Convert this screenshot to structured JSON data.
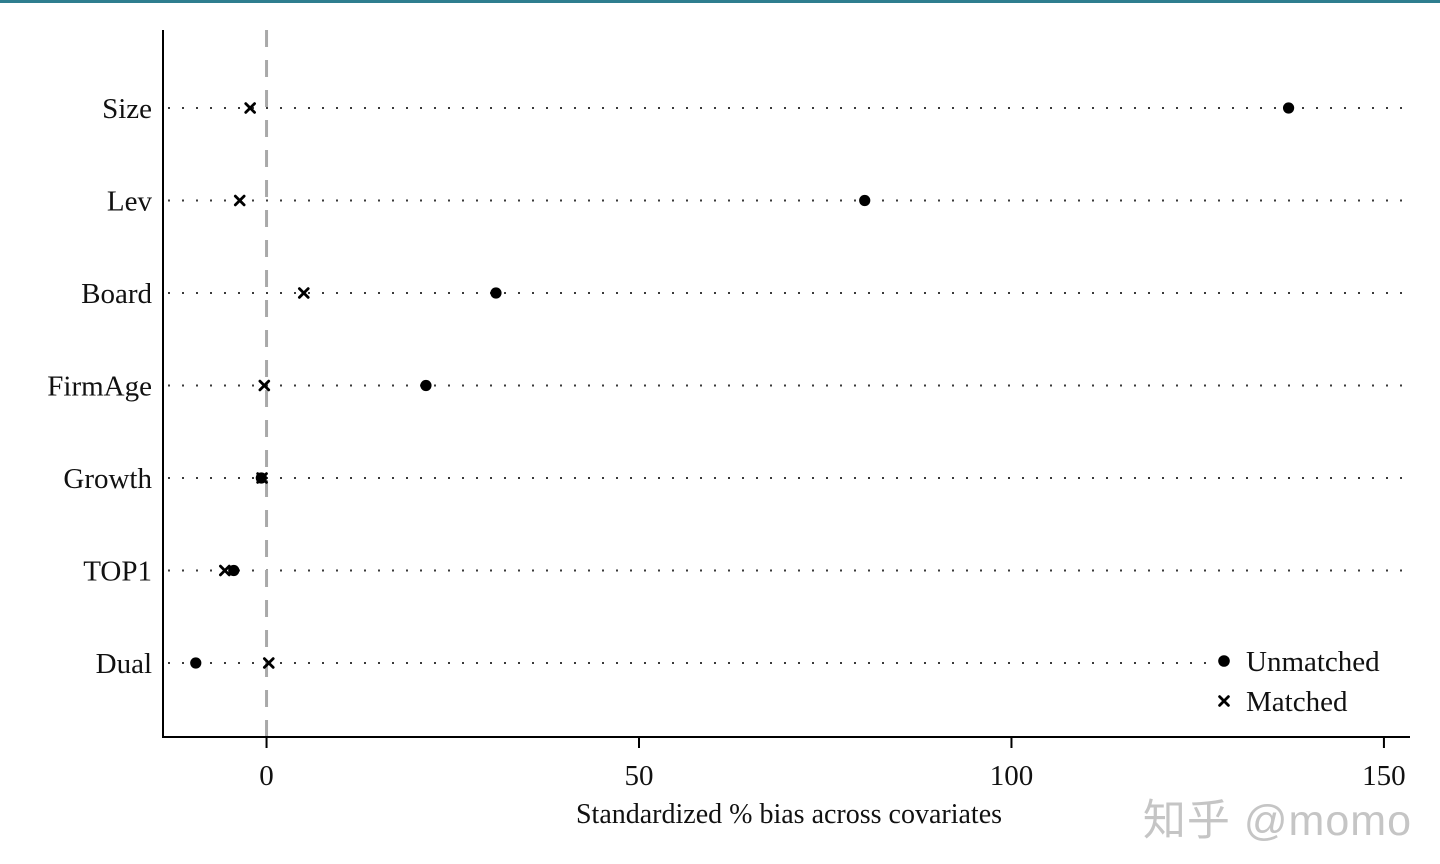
{
  "page": {
    "top_border_color": "#2f7e8f",
    "background": "#ffffff",
    "watermark": {
      "text": "知乎 @momo",
      "color": "#c5c5c5"
    }
  },
  "chart_data": {
    "type": "scatter",
    "subtype": "horizontal dot plot (covariate balance / Stata pstest style)",
    "title": "",
    "xlabel": "Standardized % bias across covariates",
    "ylabel": "",
    "categories": [
      "Size",
      "Lev",
      "Board",
      "FirmAge",
      "Growth",
      "TOP1",
      "Dual"
    ],
    "series": [
      {
        "name": "Unmatched",
        "marker": "filled-circle",
        "color": "#000000",
        "values": [
          137.2,
          80.3,
          30.8,
          21.4,
          -0.7,
          -4.4,
          -9.5
        ]
      },
      {
        "name": "Matched",
        "marker": "x",
        "color": "#000000",
        "values": [
          -2.2,
          -3.6,
          5.0,
          -0.3,
          -0.6,
          -5.6,
          0.3
        ]
      }
    ],
    "xticks": [
      0,
      50,
      100,
      150
    ],
    "xlim": [
      -13.9,
      153.5
    ],
    "reference_line_x": 0,
    "grid": "dotted horizontal line per category",
    "legend": {
      "position": "inside bottom-right",
      "entries": [
        {
          "marker": "filled-circle",
          "label": "Unmatched"
        },
        {
          "marker": "x",
          "label": "Matched"
        }
      ]
    },
    "colors": {
      "marker": "#000000",
      "axis": "#000000",
      "grid_dot": "#3a3a3a",
      "reference_line": "#a9a9a9"
    }
  }
}
